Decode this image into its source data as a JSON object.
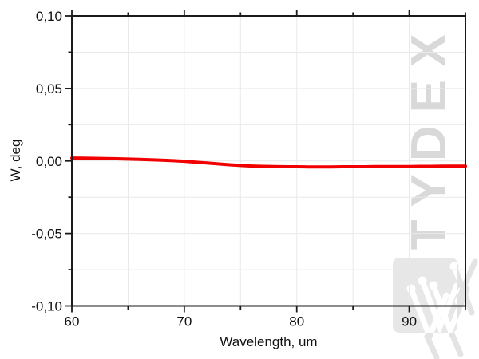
{
  "watermark": {
    "text": "TYDEX",
    "logo": "tydex-w-mark"
  },
  "colors": {
    "background": "#ffffff",
    "line": "#f20000",
    "frame": "#1b1b1b",
    "grid": "#e9e9e9",
    "watermark_text": "#d9d9d9",
    "logo_square": "#e7e7e7",
    "logo_stroke_outside": "#e3e3e3",
    "logo_stroke_inside": "#ffffff",
    "tick_label": "#111111"
  },
  "chart_data": {
    "type": "line",
    "title": "",
    "xlabel": "Wavelength, um",
    "ylabel": "W, deg",
    "xlim": [
      60,
      95
    ],
    "ylim": [
      -0.1,
      0.1
    ],
    "x_major_ticks": [
      60,
      70,
      80,
      90
    ],
    "x_major_tick_labels": [
      "60",
      "70",
      "80",
      "90"
    ],
    "x_minor_ticks": [
      65,
      75,
      85,
      95
    ],
    "y_major_ticks": [
      0.1,
      0.05,
      0.0,
      -0.05,
      -0.1
    ],
    "y_major_tick_labels": [
      "0,10",
      "0,05",
      "0,00",
      "-0,05",
      "-0,10"
    ],
    "y_minor_ticks": [
      0.075,
      0.025,
      -0.025,
      -0.075
    ],
    "grid": "light gray lines at all major and minor ticks",
    "legend": "none",
    "series": [
      {
        "name": "W",
        "color": "#f20000",
        "x": [
          60,
          61,
          62,
          63,
          64,
          65,
          66,
          67,
          68,
          69,
          70,
          71,
          72,
          73,
          74,
          75,
          76,
          77,
          78,
          79,
          80,
          81,
          82,
          83,
          84,
          85,
          86,
          87,
          88,
          89,
          90,
          91,
          92,
          93,
          94,
          95
        ],
        "y": [
          0.002,
          0.0019,
          0.0018,
          0.0017,
          0.0015,
          0.0013,
          0.0011,
          0.0008,
          0.0005,
          0.0002,
          -0.0002,
          -0.0008,
          -0.0014,
          -0.002,
          -0.0026,
          -0.0031,
          -0.0035,
          -0.0037,
          -0.0039,
          -0.004,
          -0.004,
          -0.0041,
          -0.0041,
          -0.0041,
          -0.004,
          -0.004,
          -0.004,
          -0.0039,
          -0.0039,
          -0.0038,
          -0.0038,
          -0.0037,
          -0.0037,
          -0.0036,
          -0.0036,
          -0.0036
        ]
      }
    ]
  }
}
